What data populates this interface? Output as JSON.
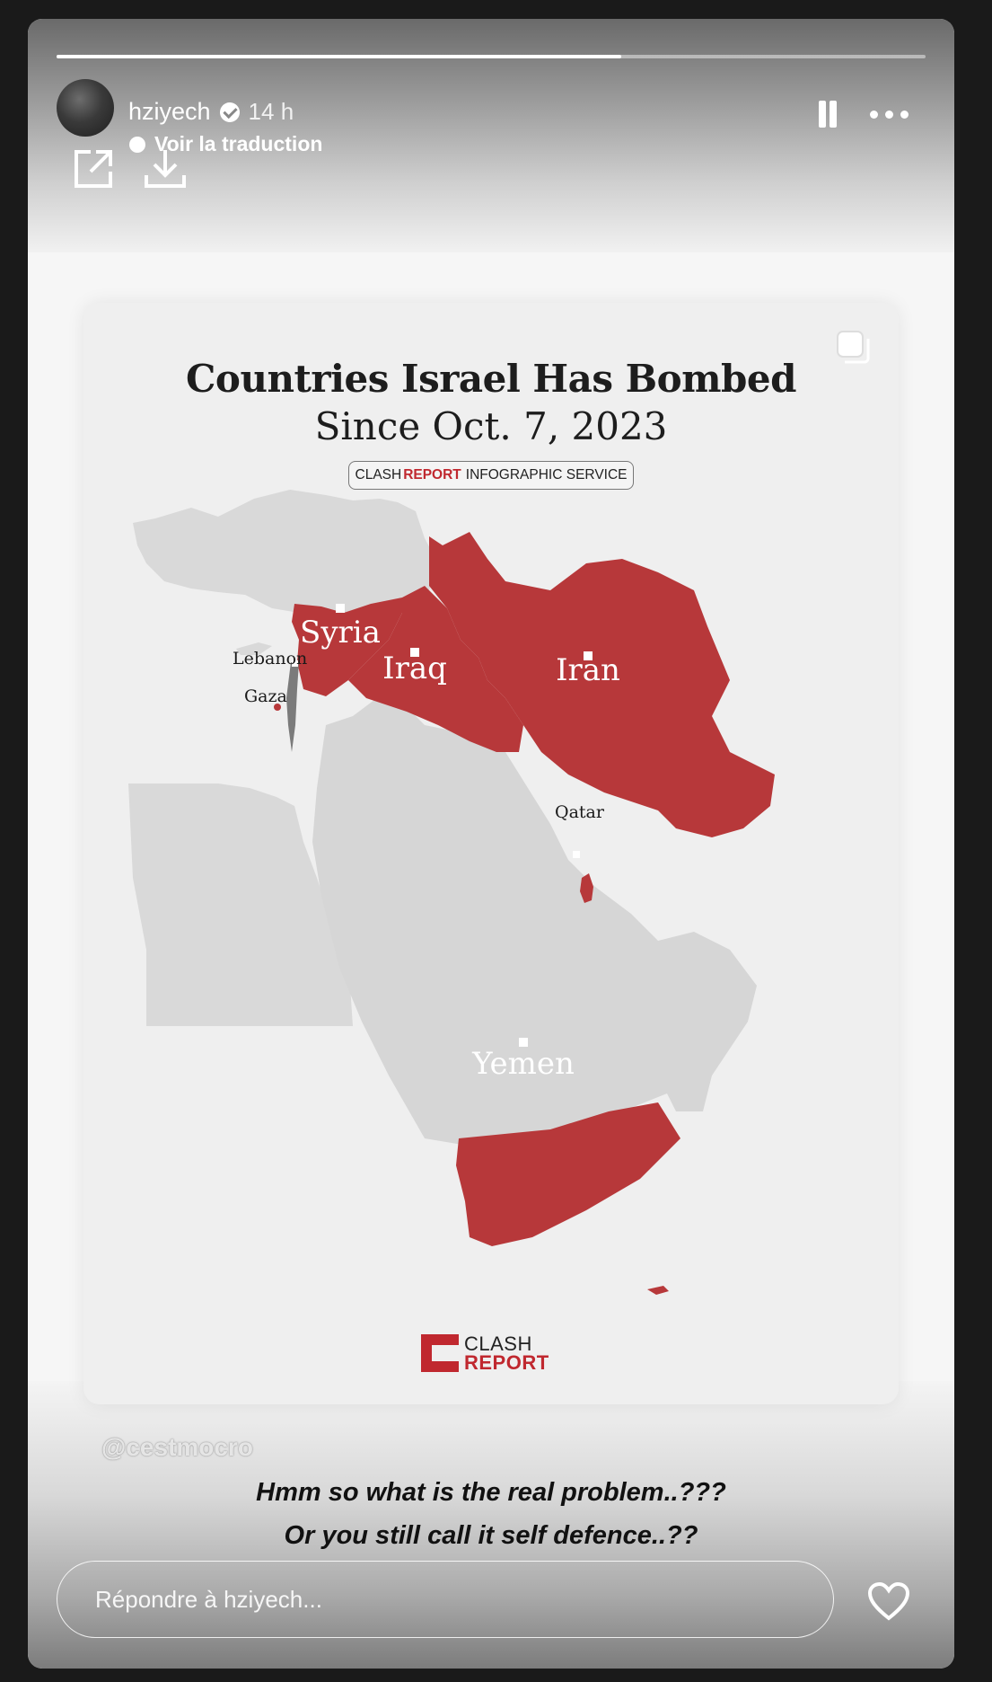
{
  "story": {
    "progress": 0.65,
    "username": "hziyech",
    "time_ago": "14 h",
    "translate_label": "Voir la traduction"
  },
  "post": {
    "title": "Countries Israel Has Bombed",
    "subtitle": "Since Oct. 7, 2023",
    "badge": {
      "part1": "CLASH",
      "part2": "REPORT",
      "part3": "INFOGRAPHIC SERVICE"
    },
    "labels": {
      "syria": "Syria",
      "iraq": "Iraq",
      "iran": "Iran",
      "yemen": "Yemen",
      "lebanon": "Lebanon",
      "gaza": "Gaza",
      "qatar": "Qatar"
    },
    "logo": {
      "line1": "CLASH",
      "line2": "REPORT"
    },
    "colors": {
      "highlight": "#b7383a",
      "land": "#d9d9d9",
      "israel": "#7b7b7b"
    }
  },
  "overlay": {
    "mention": "@cestmocro",
    "caption_line1": "Hmm so what is the real problem..???",
    "caption_line2": "Or you still call it self defence..??"
  },
  "reply": {
    "placeholder": "Répondre à hziyech..."
  },
  "icons": {
    "pause": "pause-icon",
    "more": "more-icon",
    "share": "share-icon",
    "download": "download-icon",
    "copy": "copy-icon",
    "heart": "heart-icon",
    "verified": "verified-badge-icon"
  }
}
